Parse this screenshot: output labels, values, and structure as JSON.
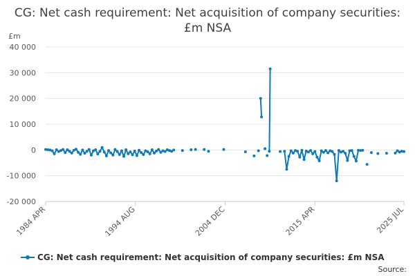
{
  "title": "CG: Net cash requirement: Net acquisition of company securities: £m NSA",
  "source_label": "Source:",
  "colors": {
    "series": "#0F7AB5",
    "grid": "#e6e6e6",
    "axis": "#cccccc"
  },
  "chart_data": {
    "type": "line",
    "title": "CG: Net cash requirement: Net acquisition of company securities: £m NSA",
    "ylabel": "£m",
    "xlabel": "",
    "ylim": [
      -20000,
      40000
    ],
    "xlim": [
      1984.25,
      2025.5
    ],
    "y_ticks": [
      40000,
      30000,
      20000,
      10000,
      0,
      -10000,
      -20000
    ],
    "y_tick_labels": [
      "40 000",
      "30 000",
      "20 000",
      "10 000",
      "0",
      "-10 000",
      "-20 000"
    ],
    "x_ticks": [
      1984.25,
      1994.58,
      2004.92,
      2015.25,
      2025.5
    ],
    "x_tick_labels": [
      "1984 APR",
      "1994 AUG",
      "2004 DEC",
      "2015 APR",
      "2025 JUL"
    ],
    "grid": "horizontal",
    "legend_position": "bottom",
    "series": [
      {
        "name": "CG: Net cash requirement: Net acquisition of company securities: £m NSA",
        "segments": [
          [
            [
              1984.25,
              200
            ],
            [
              1984.5,
              100
            ],
            [
              1984.75,
              0
            ],
            [
              1985.0,
              -300
            ],
            [
              1985.25,
              -1500
            ],
            [
              1985.5,
              100
            ],
            [
              1985.75,
              -600
            ],
            [
              1986.0,
              -200
            ],
            [
              1986.25,
              200
            ],
            [
              1986.5,
              -1000
            ],
            [
              1986.75,
              100
            ],
            [
              1987.0,
              -500
            ],
            [
              1987.25,
              -1200
            ],
            [
              1987.5,
              -100
            ],
            [
              1987.75,
              300
            ],
            [
              1988.0,
              -900
            ],
            [
              1988.25,
              -1700
            ],
            [
              1988.5,
              0
            ],
            [
              1988.75,
              -1300
            ],
            [
              1989.0,
              -500
            ],
            [
              1989.25,
              200
            ],
            [
              1989.5,
              -2000
            ],
            [
              1989.75,
              -300
            ],
            [
              1990.0,
              100
            ],
            [
              1990.25,
              -1600
            ],
            [
              1990.5,
              -500
            ],
            [
              1990.75,
              1000
            ],
            [
              1991.0,
              -800
            ],
            [
              1991.25,
              -2300
            ],
            [
              1991.5,
              -200
            ],
            [
              1991.75,
              -1100
            ],
            [
              1992.0,
              -2000
            ],
            [
              1992.25,
              200
            ],
            [
              1992.5,
              -600
            ],
            [
              1992.75,
              -1800
            ],
            [
              1993.0,
              -300
            ],
            [
              1993.25,
              -2500
            ],
            [
              1993.5,
              100
            ],
            [
              1993.75,
              -1500
            ],
            [
              1994.0,
              -700
            ],
            [
              1994.25,
              -1900
            ],
            [
              1994.5,
              -400
            ],
            [
              1994.75,
              -2200
            ],
            [
              1995.0,
              -100
            ],
            [
              1995.25,
              -1000
            ],
            [
              1995.5,
              -1800
            ],
            [
              1995.75,
              -300
            ],
            [
              1996.0,
              -700
            ],
            [
              1996.25,
              -1500
            ],
            [
              1996.5,
              100
            ],
            [
              1996.75,
              -1200
            ],
            [
              1997.0,
              -400
            ],
            [
              1997.25,
              200
            ],
            [
              1997.5,
              -900
            ],
            [
              1997.75,
              -300
            ],
            [
              1998.0,
              -600
            ],
            [
              1998.25,
              100
            ],
            [
              1998.5,
              -200
            ],
            [
              1998.75,
              -500
            ],
            [
              1999.0,
              0
            ]
          ],
          [
            [
              2011.75,
              -500
            ],
            [
              2012.0,
              -7500
            ],
            [
              2012.25,
              -2500
            ],
            [
              2012.5,
              -300
            ],
            [
              2012.75,
              -1200
            ],
            [
              2013.0,
              -200
            ],
            [
              2013.25,
              -500
            ],
            [
              2013.5,
              -2800
            ],
            [
              2013.75,
              -100
            ],
            [
              2014.0,
              -3700
            ],
            [
              2014.25,
              -400
            ],
            [
              2014.5,
              -800
            ],
            [
              2014.75,
              -200
            ],
            [
              2015.0,
              -1500
            ],
            [
              2015.25,
              -600
            ],
            [
              2015.5,
              -2800
            ],
            [
              2015.75,
              -4200
            ],
            [
              2016.0,
              -300
            ],
            [
              2016.25,
              -900
            ],
            [
              2016.5,
              -200
            ],
            [
              2016.75,
              -1100
            ],
            [
              2017.0,
              -300
            ],
            [
              2017.25,
              -600
            ],
            [
              2017.5,
              -1700
            ],
            [
              2017.75,
              -12000
            ],
            [
              2018.0,
              -200
            ],
            [
              2018.25,
              -800
            ],
            [
              2018.5,
              -500
            ],
            [
              2018.75,
              -1300
            ],
            [
              2019.0,
              -4100
            ],
            [
              2019.25,
              -300
            ],
            [
              2019.5,
              -200
            ],
            [
              2019.75,
              -2500
            ],
            [
              2020.0,
              -4300
            ],
            [
              2020.25,
              -100
            ],
            [
              2020.5,
              -200
            ],
            [
              2020.75,
              -100
            ]
          ],
          [
            [
              2024.5,
              -1200
            ],
            [
              2024.75,
              -300
            ],
            [
              2025.0,
              -800
            ],
            [
              2025.25,
              -500
            ],
            [
              2025.5,
              -600
            ]
          ]
        ],
        "jumps": [
          [
            [
              2009.0,
              20000
            ],
            [
              2009.1,
              12800
            ]
          ],
          [
            [
              2010.0,
              -500
            ],
            [
              2010.1,
              31500
            ]
          ]
        ],
        "points": [
          [
            2000.0,
            -200
          ],
          [
            2001.0,
            100
          ],
          [
            2001.5,
            200
          ],
          [
            2002.5,
            200
          ],
          [
            2003.0,
            -500
          ],
          [
            2004.75,
            200
          ],
          [
            2007.25,
            -700
          ],
          [
            2008.25,
            -2300
          ],
          [
            2008.75,
            -300
          ],
          [
            2009.5,
            500
          ],
          [
            2009.75,
            -2200
          ],
          [
            2011.25,
            -600
          ],
          [
            2021.25,
            -5600
          ],
          [
            2021.75,
            -1000
          ],
          [
            2022.5,
            -1400
          ],
          [
            2023.5,
            -1300
          ]
        ]
      }
    ]
  }
}
